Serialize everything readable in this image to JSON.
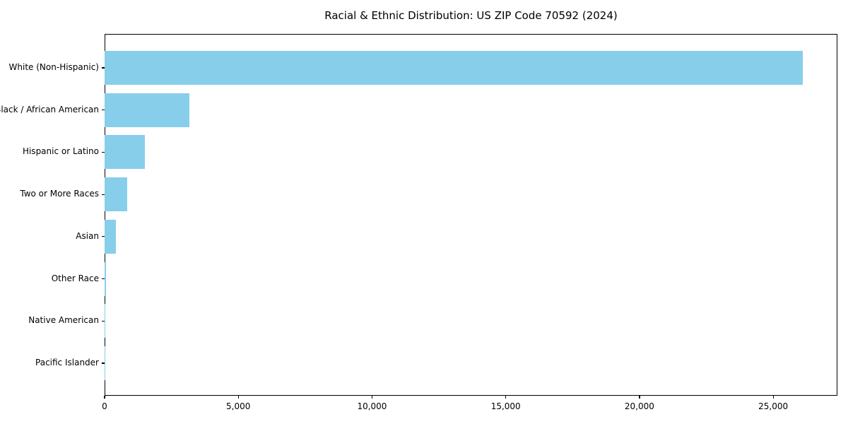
{
  "figure": {
    "background_color": "#FFFFFF",
    "frame_color": "#000000",
    "text_color": "#000000"
  },
  "chart_data": {
    "type": "bar",
    "orientation": "horizontal",
    "title": "Racial & Ethnic Distribution: US ZIP Code 70592 (2024)",
    "categories": [
      "White (Non-Hispanic)",
      "Black / African American",
      "Hispanic or Latino",
      "Two or More Races",
      "Asian",
      "Other Race",
      "Native American",
      "Pacific Islander"
    ],
    "values": [
      26100,
      3170,
      1500,
      850,
      430,
      40,
      15,
      5
    ],
    "xlabel": "",
    "ylabel": "",
    "xlim": [
      0,
      27400
    ],
    "x_ticks": [
      0,
      5000,
      10000,
      15000,
      20000,
      25000
    ],
    "x_tick_labels": [
      "0",
      "5,000",
      "10,000",
      "15,000",
      "20,000",
      "25,000"
    ],
    "bar_color": "#87CEEB",
    "grid": false,
    "legend": null
  }
}
